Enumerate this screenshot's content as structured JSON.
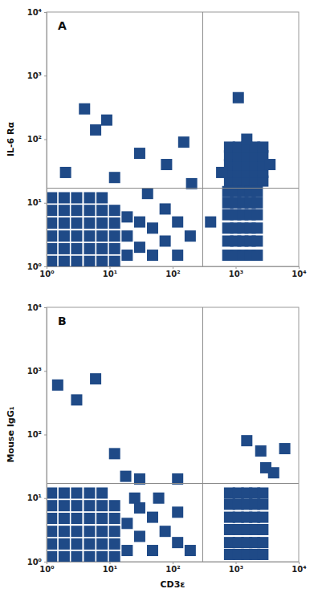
{
  "chart_data": [
    {
      "type": "scatter",
      "title": "A",
      "y_label": "IL-6 Rα",
      "log": true,
      "color": "#1f4a87",
      "marker": "square",
      "xlim": [
        1,
        10000
      ],
      "ylim": [
        1,
        10000
      ],
      "xticks": [
        {
          "value": 1,
          "label": "10⁰"
        },
        {
          "value": 10,
          "label": "10¹"
        },
        {
          "value": 100,
          "label": "10²"
        },
        {
          "value": 1000,
          "label": "10³"
        },
        {
          "value": 10000,
          "label": "10⁴"
        }
      ],
      "yticks": [
        {
          "value": 1,
          "label": "10⁰"
        },
        {
          "value": 10,
          "label": "10¹"
        },
        {
          "value": 100,
          "label": "10²"
        },
        {
          "value": 1000,
          "label": "10³"
        },
        {
          "value": 10000,
          "label": "10⁴"
        }
      ],
      "gate": {
        "x": 300,
        "y": 17
      },
      "x": [
        1.2,
        1.2,
        1.2,
        1.2,
        1.2,
        1.2,
        1.9,
        1.9,
        1.9,
        1.9,
        1.9,
        1.9,
        3,
        3,
        3,
        3,
        3,
        3,
        4.8,
        4.8,
        4.8,
        4.8,
        4.8,
        4.8,
        7.6,
        7.6,
        7.6,
        7.6,
        7.6,
        7.6,
        12,
        12,
        12,
        12,
        12,
        19,
        19,
        19,
        30,
        30,
        48,
        48,
        76,
        76,
        120,
        120,
        190,
        800,
        800,
        800,
        800,
        800,
        1100,
        1100,
        1100,
        1100,
        1100,
        1500,
        1500,
        1500,
        1500,
        1500,
        2000,
        2000,
        2000,
        2000,
        2000,
        2700,
        2700,
        2700,
        2700,
        2700,
        600,
        3500,
        1500,
        750,
        750,
        750,
        750,
        750,
        750,
        1000,
        1000,
        1000,
        1000,
        1000,
        1000,
        1300,
        1300,
        1300,
        1300,
        1300,
        1300,
        1700,
        1700,
        1700,
        1700,
        1700,
        1700,
        2200,
        2200,
        2200,
        2200,
        2200,
        2200,
        4,
        6,
        30,
        80,
        150,
        1100,
        2,
        12,
        200,
        400,
        40,
        9
      ],
      "values": [
        1.2,
        1.9,
        3,
        4.8,
        7.6,
        12,
        1.2,
        1.9,
        3,
        4.8,
        7.6,
        12,
        1.2,
        1.9,
        3,
        4.8,
        7.6,
        12,
        1.2,
        1.9,
        3,
        4.8,
        7.6,
        12,
        1.2,
        1.9,
        3,
        4.8,
        7.6,
        12,
        1.2,
        1.9,
        3,
        4.8,
        7.6,
        1.5,
        3,
        6,
        2,
        5,
        1.5,
        4,
        2.5,
        8,
        1.5,
        5,
        3,
        22,
        30,
        40,
        55,
        75,
        22,
        30,
        40,
        55,
        75,
        22,
        30,
        40,
        55,
        75,
        22,
        30,
        40,
        55,
        75,
        22,
        30,
        40,
        55,
        75,
        30,
        40,
        100,
        1.5,
        2.5,
        4,
        6.5,
        10,
        15,
        1.5,
        2.5,
        4,
        6.5,
        10,
        15,
        1.5,
        2.5,
        4,
        6.5,
        10,
        15,
        1.5,
        2.5,
        4,
        6.5,
        10,
        15,
        1.5,
        2.5,
        4,
        6.5,
        10,
        15,
        300,
        140,
        60,
        40,
        90,
        450,
        30,
        25,
        20,
        5,
        14,
        200
      ]
    },
    {
      "type": "scatter",
      "title": "B",
      "y_label": "Mouse IgG₁",
      "x_label": "CD3ε",
      "log": true,
      "color": "#1f4a87",
      "marker": "square",
      "xlim": [
        1,
        10000
      ],
      "ylim": [
        1,
        10000
      ],
      "xticks": [
        {
          "value": 1,
          "label": "10⁰"
        },
        {
          "value": 10,
          "label": "10¹"
        },
        {
          "value": 100,
          "label": "10²"
        },
        {
          "value": 1000,
          "label": "10³"
        },
        {
          "value": 10000,
          "label": "10⁴"
        }
      ],
      "yticks": [
        {
          "value": 1,
          "label": "10⁰"
        },
        {
          "value": 10,
          "label": "10¹"
        },
        {
          "value": 100,
          "label": "10²"
        },
        {
          "value": 1000,
          "label": "10³"
        },
        {
          "value": 10000,
          "label": "10⁴"
        }
      ],
      "gate": {
        "x": 300,
        "y": 17
      },
      "x": [
        1.2,
        1.2,
        1.2,
        1.2,
        1.2,
        1.2,
        1.9,
        1.9,
        1.9,
        1.9,
        1.9,
        1.9,
        3,
        3,
        3,
        3,
        3,
        3,
        4.8,
        4.8,
        4.8,
        4.8,
        4.8,
        4.8,
        7.6,
        7.6,
        7.6,
        7.6,
        7.6,
        7.6,
        12,
        12,
        12,
        12,
        12,
        19,
        19,
        30,
        30,
        48,
        48,
        76,
        120,
        120,
        190,
        60,
        25,
        800,
        800,
        800,
        800,
        800,
        800,
        1100,
        1100,
        1100,
        1100,
        1100,
        1100,
        1500,
        1500,
        1500,
        1500,
        1500,
        1500,
        2000,
        2000,
        2000,
        2000,
        2000,
        2000,
        2700,
        2700,
        2700,
        2700,
        2700,
        2700,
        1.5,
        3,
        6,
        12,
        18,
        30,
        1500,
        2500,
        6000,
        4000,
        120,
        3000
      ],
      "values": [
        1.2,
        1.9,
        3,
        4.8,
        7.6,
        12,
        1.2,
        1.9,
        3,
        4.8,
        7.6,
        12,
        1.2,
        1.9,
        3,
        4.8,
        7.6,
        12,
        1.2,
        1.9,
        3,
        4.8,
        7.6,
        12,
        1.2,
        1.9,
        3,
        4.8,
        7.6,
        12,
        1.2,
        1.9,
        3,
        4.8,
        7.6,
        1.5,
        4,
        2.5,
        7,
        1.5,
        5,
        3,
        2,
        6,
        1.5,
        10,
        10,
        1.3,
        2,
        3.2,
        5,
        8,
        12,
        1.3,
        2,
        3.2,
        5,
        8,
        12,
        1.3,
        2,
        3.2,
        5,
        8,
        12,
        1.3,
        2,
        3.2,
        5,
        8,
        12,
        1.3,
        2,
        3.2,
        5,
        8,
        12,
        600,
        350,
        750,
        50,
        22,
        20,
        80,
        55,
        60,
        25,
        20,
        30
      ]
    }
  ]
}
